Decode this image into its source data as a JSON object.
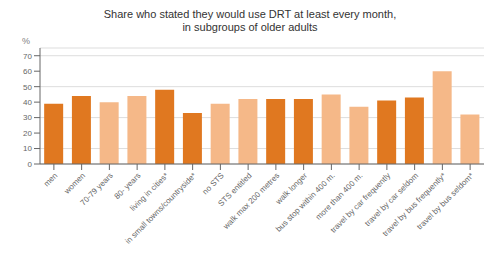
{
  "chart_data": {
    "type": "bar",
    "title": "Share who stated they would use DRT at least every month,\nin subgroups of older adults",
    "categories": [
      "men",
      "women",
      "70-79 years",
      "80-  years",
      "living in cities*",
      "in small towns/countryside*",
      "no STS",
      "STS entitled",
      "walk max 200 metres",
      "walk longer",
      "bus stop within 400 m.",
      "more than 400 m.",
      "travel by car frequently",
      "travel by car seldom",
      "travel by bus frequently*",
      "travel by bus seldom*"
    ],
    "values": [
      39,
      44,
      40,
      44,
      48,
      33,
      39,
      42,
      42,
      42,
      45,
      37,
      41,
      43,
      60,
      32
    ],
    "colors": [
      "#E07820",
      "#E07820",
      "#F5B888",
      "#F5B888",
      "#E07820",
      "#E07820",
      "#F5B888",
      "#F5B888",
      "#E07820",
      "#E07820",
      "#F5B888",
      "#F5B888",
      "#E07820",
      "#E07820",
      "#F5B888",
      "#F5B888"
    ],
    "ylabel": "%",
    "ylim": [
      0,
      75
    ],
    "yticks": [
      0,
      10,
      20,
      30,
      40,
      50,
      60,
      70
    ],
    "grid": true
  }
}
